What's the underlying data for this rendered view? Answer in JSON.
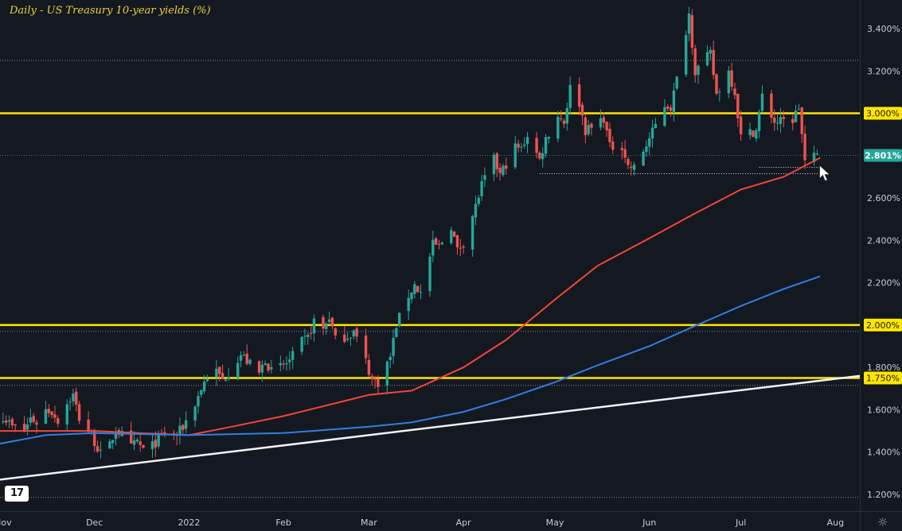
{
  "title": "Daily - US Treasury 10-year yields (%)",
  "colors": {
    "background": "#141821",
    "up": "#26a69a",
    "down": "#ef5350",
    "ma_fast": "#f0473a",
    "ma_slow": "#2f7fe0",
    "level": "#ffe600",
    "trendline": "#f2f2f2",
    "dotted": "#8c8f96",
    "axis_text": "#c8ccd4"
  },
  "icons": {
    "logo": "tradingview-logo-icon",
    "settings": "gear-icon"
  },
  "logo_text": "17",
  "settings_glyph": "☼",
  "chart_data": {
    "type": "candlestick",
    "title": "Daily - US Treasury 10-year yields (%)",
    "y_unit": "%",
    "ylim": [
      1.12,
      3.5
    ],
    "xlim": [
      "2021-10-31",
      "2022-08-09"
    ],
    "grid": false,
    "x_ticks": [
      {
        "date": "2021-11-01",
        "label": "Nov"
      },
      {
        "date": "2021-12-01",
        "label": "Dec"
      },
      {
        "date": "2022-01-01",
        "label": "2022"
      },
      {
        "date": "2022-02-01",
        "label": "Feb"
      },
      {
        "date": "2022-03-01",
        "label": "Mar"
      },
      {
        "date": "2022-04-01",
        "label": "Apr"
      },
      {
        "date": "2022-05-01",
        "label": "May"
      },
      {
        "date": "2022-06-01",
        "label": "Jun"
      },
      {
        "date": "2022-07-01",
        "label": "Jul"
      },
      {
        "date": "2022-08-01",
        "label": "Aug"
      }
    ],
    "y_ticks": [
      {
        "value": 3.4,
        "label": "3.400%"
      },
      {
        "value": 3.2,
        "label": "3.200%"
      },
      {
        "value": 3.0,
        "label": "3.000%"
      },
      {
        "value": 2.6,
        "label": "2.600%"
      },
      {
        "value": 2.4,
        "label": "2.400%"
      },
      {
        "value": 2.2,
        "label": "2.200%"
      },
      {
        "value": 1.8,
        "label": "1.800%"
      },
      {
        "value": 1.6,
        "label": "1.600%"
      },
      {
        "value": 1.4,
        "label": "1.400%"
      },
      {
        "value": 1.2,
        "label": "1.200%"
      }
    ],
    "price_badges": [
      {
        "value": 3.0,
        "label": "3.000%",
        "style": "yellow"
      },
      {
        "value": 2.801,
        "label": "2.801%",
        "style": "teal"
      },
      {
        "value": 2.0,
        "label": "2.000%",
        "style": "yellow"
      },
      {
        "value": 1.75,
        "label": "1.750%",
        "style": "yellow"
      }
    ],
    "horizontal_levels": [
      {
        "value": 3.0,
        "style": "solid-yellow"
      },
      {
        "value": 2.0,
        "style": "solid-yellow"
      },
      {
        "value": 1.75,
        "style": "solid-yellow"
      },
      {
        "value": 3.25,
        "style": "dotted"
      },
      {
        "value": 1.97,
        "style": "dotted"
      },
      {
        "value": 1.715,
        "style": "dotted"
      },
      {
        "value": 1.186,
        "style": "dotted"
      },
      {
        "value": 2.801,
        "style": "dotted-teal"
      }
    ],
    "support_segments": [
      {
        "from": "2022-04-26",
        "to": "2022-07-27",
        "value": 2.715
      },
      {
        "from": "2022-07-07",
        "to": "2022-07-27",
        "value": 2.745
      }
    ],
    "trendline": {
      "from": [
        "2021-10-31",
        1.27
      ],
      "to": [
        "2022-08-09",
        1.76
      ]
    },
    "series": [
      {
        "name": "",
        "kind": "moving-average-fast",
        "points": [
          [
            "2021-10-31",
            1.5
          ],
          [
            "2021-11-15",
            1.5
          ],
          [
            "2021-12-01",
            1.5
          ],
          [
            "2021-12-15",
            1.49
          ],
          [
            "2022-01-01",
            1.48
          ],
          [
            "2022-01-15",
            1.52
          ],
          [
            "2022-02-01",
            1.57
          ],
          [
            "2022-02-15",
            1.62
          ],
          [
            "2022-03-01",
            1.67
          ],
          [
            "2022-03-15",
            1.69
          ],
          [
            "2022-04-01",
            1.8
          ],
          [
            "2022-04-15",
            1.93
          ],
          [
            "2022-05-01",
            2.12
          ],
          [
            "2022-05-15",
            2.28
          ],
          [
            "2022-06-01",
            2.41
          ],
          [
            "2022-06-15",
            2.52
          ],
          [
            "2022-07-01",
            2.64
          ],
          [
            "2022-07-15",
            2.7
          ],
          [
            "2022-07-27",
            2.79
          ]
        ]
      },
      {
        "name": "",
        "kind": "moving-average-slow",
        "points": [
          [
            "2021-10-31",
            1.44
          ],
          [
            "2021-11-15",
            1.48
          ],
          [
            "2021-12-01",
            1.49
          ],
          [
            "2022-01-01",
            1.48
          ],
          [
            "2022-02-01",
            1.49
          ],
          [
            "2022-03-01",
            1.52
          ],
          [
            "2022-03-15",
            1.54
          ],
          [
            "2022-04-01",
            1.59
          ],
          [
            "2022-04-15",
            1.65
          ],
          [
            "2022-05-01",
            1.73
          ],
          [
            "2022-05-15",
            1.81
          ],
          [
            "2022-06-01",
            1.9
          ],
          [
            "2022-06-15",
            1.99
          ],
          [
            "2022-07-01",
            2.09
          ],
          [
            "2022-07-15",
            2.17
          ],
          [
            "2022-07-27",
            2.23
          ]
        ]
      },
      {
        "name": "",
        "kind": "daily-close",
        "points": [
          [
            "2021-11-01",
            1.57
          ],
          [
            "2021-11-04",
            1.52
          ],
          [
            "2021-11-08",
            1.5
          ],
          [
            "2021-11-10",
            1.56
          ],
          [
            "2021-11-12",
            1.54
          ],
          [
            "2021-11-15",
            1.6
          ],
          [
            "2021-11-17",
            1.59
          ],
          [
            "2021-11-19",
            1.55
          ],
          [
            "2021-11-22",
            1.63
          ],
          [
            "2021-11-24",
            1.67
          ],
          [
            "2021-11-26",
            1.56
          ],
          [
            "2021-11-29",
            1.5
          ],
          [
            "2021-12-01",
            1.45
          ],
          [
            "2021-12-03",
            1.39
          ],
          [
            "2021-12-06",
            1.43
          ],
          [
            "2021-12-08",
            1.51
          ],
          [
            "2021-12-10",
            1.48
          ],
          [
            "2021-12-13",
            1.42
          ],
          [
            "2021-12-15",
            1.45
          ],
          [
            "2021-12-17",
            1.41
          ],
          [
            "2021-12-20",
            1.43
          ],
          [
            "2021-12-22",
            1.46
          ],
          [
            "2021-12-24",
            1.49
          ],
          [
            "2021-12-28",
            1.48
          ],
          [
            "2021-12-30",
            1.52
          ],
          [
            "2022-01-03",
            1.63
          ],
          [
            "2022-01-05",
            1.7
          ],
          [
            "2022-01-07",
            1.76
          ],
          [
            "2022-01-10",
            1.78
          ],
          [
            "2022-01-12",
            1.74
          ],
          [
            "2022-01-14",
            1.78
          ],
          [
            "2022-01-18",
            1.86
          ],
          [
            "2022-01-20",
            1.83
          ],
          [
            "2022-01-24",
            1.77
          ],
          [
            "2022-01-26",
            1.84
          ],
          [
            "2022-01-28",
            1.78
          ],
          [
            "2022-02-01",
            1.81
          ],
          [
            "2022-02-03",
            1.83
          ],
          [
            "2022-02-07",
            1.92
          ],
          [
            "2022-02-09",
            1.94
          ],
          [
            "2022-02-11",
            2.02
          ],
          [
            "2022-02-14",
            1.98
          ],
          [
            "2022-02-16",
            2.04
          ],
          [
            "2022-02-18",
            1.93
          ],
          [
            "2022-02-22",
            1.95
          ],
          [
            "2022-02-24",
            1.97
          ],
          [
            "2022-02-28",
            1.83
          ],
          [
            "2022-03-02",
            1.74
          ],
          [
            "2022-03-04",
            1.73
          ],
          [
            "2022-03-08",
            1.85
          ],
          [
            "2022-03-10",
            2.0
          ],
          [
            "2022-03-14",
            2.14
          ],
          [
            "2022-03-16",
            2.19
          ],
          [
            "2022-03-18",
            2.15
          ],
          [
            "2022-03-22",
            2.38
          ],
          [
            "2022-03-24",
            2.37
          ],
          [
            "2022-03-28",
            2.47
          ],
          [
            "2022-03-30",
            2.35
          ],
          [
            "2022-04-01",
            2.39
          ],
          [
            "2022-04-05",
            2.56
          ],
          [
            "2022-04-07",
            2.66
          ],
          [
            "2022-04-11",
            2.78
          ],
          [
            "2022-04-13",
            2.71
          ],
          [
            "2022-04-18",
            2.84
          ],
          [
            "2022-04-20",
            2.83
          ],
          [
            "2022-04-22",
            2.9
          ],
          [
            "2022-04-26",
            2.78
          ],
          [
            "2022-04-28",
            2.88
          ],
          [
            "2022-05-02",
            2.99
          ],
          [
            "2022-05-04",
            2.96
          ],
          [
            "2022-05-06",
            3.12
          ],
          [
            "2022-05-09",
            3.05
          ],
          [
            "2022-05-11",
            2.92
          ],
          [
            "2022-05-13",
            2.93
          ],
          [
            "2022-05-17",
            2.98
          ],
          [
            "2022-05-19",
            2.84
          ],
          [
            "2022-05-23",
            2.85
          ],
          [
            "2022-05-25",
            2.75
          ],
          [
            "2022-05-27",
            2.74
          ],
          [
            "2022-05-31",
            2.85
          ],
          [
            "2022-06-02",
            2.91
          ],
          [
            "2022-06-06",
            3.04
          ],
          [
            "2022-06-08",
            3.03
          ],
          [
            "2022-06-10",
            3.16
          ],
          [
            "2022-06-14",
            3.47
          ],
          [
            "2022-06-16",
            3.2
          ],
          [
            "2022-06-21",
            3.28
          ],
          [
            "2022-06-23",
            3.09
          ],
          [
            "2022-06-27",
            3.2
          ],
          [
            "2022-06-29",
            3.1
          ],
          [
            "2022-07-01",
            2.89
          ],
          [
            "2022-07-06",
            2.92
          ],
          [
            "2022-07-08",
            3.08
          ],
          [
            "2022-07-12",
            2.96
          ],
          [
            "2022-07-14",
            2.96
          ],
          [
            "2022-07-18",
            2.97
          ],
          [
            "2022-07-20",
            3.03
          ],
          [
            "2022-07-22",
            2.77
          ],
          [
            "2022-07-26",
            2.8
          ]
        ]
      }
    ]
  }
}
